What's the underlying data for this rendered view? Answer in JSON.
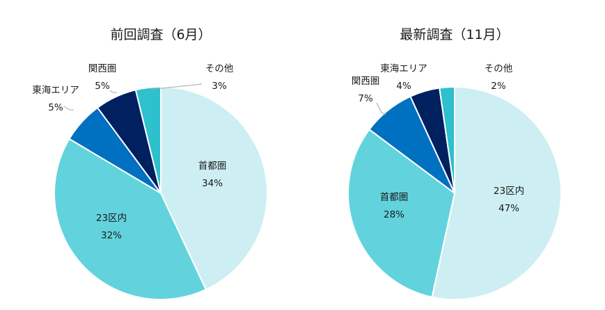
{
  "chart_data": [
    {
      "type": "pie",
      "title": "前回調査（6月）",
      "slices": [
        {
          "label": "首都圏",
          "value": 34,
          "value_text": "34%",
          "color": "#CDEFF3"
        },
        {
          "label": "23区内",
          "value": 32,
          "value_text": "32%",
          "color": "#62D3DC"
        },
        {
          "label": "東海エリア",
          "value": 5,
          "value_text": "5%",
          "color": "#0070C0"
        },
        {
          "label": "関西圏",
          "value": 5,
          "value_text": "5%",
          "color": "#002060"
        },
        {
          "label": "その他",
          "value": 3,
          "value_text": "3%",
          "color": "#2EC0CC"
        }
      ]
    },
    {
      "type": "pie",
      "title": "最新調査（11月）",
      "slices": [
        {
          "label": "23区内",
          "value": 47,
          "value_text": "47%",
          "color": "#CDEFF3"
        },
        {
          "label": "首都圏",
          "value": 28,
          "value_text": "28%",
          "color": "#62D3DC"
        },
        {
          "label": "関西圏",
          "value": 7,
          "value_text": "7%",
          "color": "#0070C0"
        },
        {
          "label": "東海エリア",
          "value": 4,
          "value_text": "4%",
          "color": "#002060"
        },
        {
          "label": "その他",
          "value": 2,
          "value_text": "2%",
          "color": "#2EC0CC"
        }
      ]
    }
  ]
}
